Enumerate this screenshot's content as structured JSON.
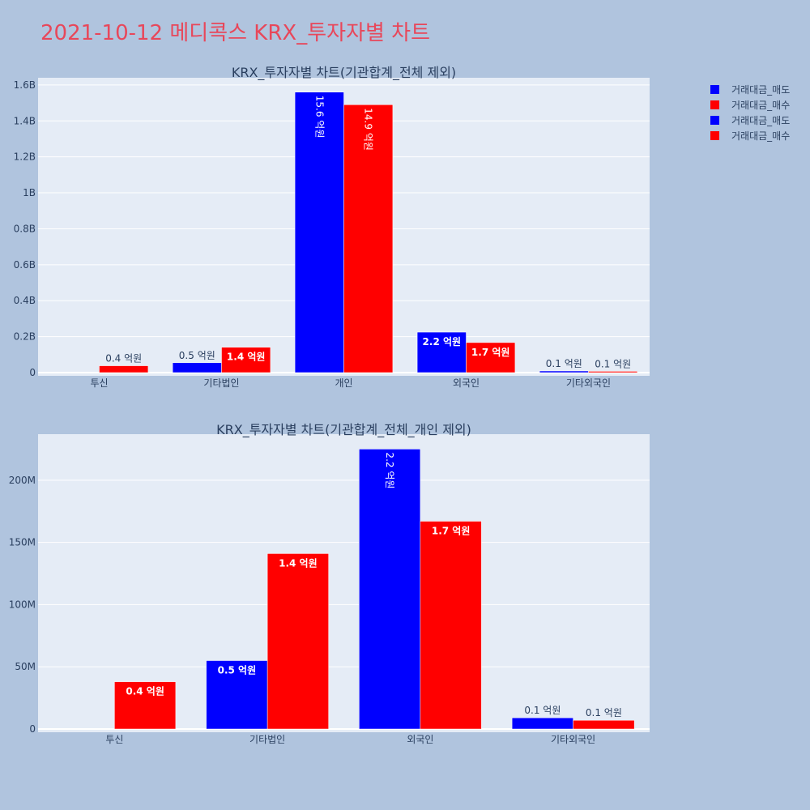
{
  "title": "2021-10-12 메디콕스 KRX_투자자별 차트",
  "legend": [
    {
      "label": "거래대금_매도",
      "color": "#0000ff"
    },
    {
      "label": "거래대금_매수",
      "color": "#ff0000"
    },
    {
      "label": "거래대금_매도",
      "color": "#0000ff"
    },
    {
      "label": "거래대금_매수",
      "color": "#ff0000"
    }
  ],
  "colors": {
    "background": "#b0c4de",
    "plot_bg": "#e5ecf6",
    "sell": "#0000ff",
    "buy": "#ff0000",
    "title": "#e8475a"
  },
  "chart_data": [
    {
      "type": "bar",
      "title": "KRX_투자자별 차트(기관합계_전체 제외)",
      "categories": [
        "투신",
        "기타법인",
        "개인",
        "외국인",
        "기타외국인"
      ],
      "series": [
        {
          "name": "거래대금_매도",
          "values": [
            0,
            55000000,
            1560000000,
            225000000,
            9000000
          ],
          "labels": [
            "",
            "0.5 억원",
            "15.6 억원",
            "2.2 억원",
            "0.1 억원"
          ]
        },
        {
          "name": "거래대금_매수",
          "values": [
            38000000,
            141000000,
            1490000000,
            167000000,
            7000000
          ],
          "labels": [
            "0.4 억원",
            "1.4 억원",
            "14.9 억원",
            "1.7 억원",
            "0.1 억원"
          ]
        }
      ],
      "yticks": [
        0,
        200000000,
        400000000,
        600000000,
        800000000,
        1000000000,
        1200000000,
        1400000000,
        1600000000
      ],
      "ytick_labels": [
        "0",
        "0.2B",
        "0.4B",
        "0.6B",
        "0.8B",
        "1B",
        "1.2B",
        "1.4B",
        "1.6B"
      ],
      "ylim": [
        0,
        1640000000
      ]
    },
    {
      "type": "bar",
      "title": "KRX_투자자별 차트(기관합계_전체_개인 제외)",
      "categories": [
        "투신",
        "기타법인",
        "외국인",
        "기타외국인"
      ],
      "series": [
        {
          "name": "거래대금_매도",
          "values": [
            0,
            55000000,
            225000000,
            9000000
          ],
          "labels": [
            "",
            "0.5 억원",
            "2.2 억원",
            "0.1 억원"
          ]
        },
        {
          "name": "거래대금_매수",
          "values": [
            38000000,
            141000000,
            167000000,
            7000000
          ],
          "labels": [
            "0.4 억원",
            "1.4 억원",
            "1.7 억원",
            "0.1 억원"
          ]
        }
      ],
      "yticks": [
        0,
        50000000,
        100000000,
        150000000,
        200000000
      ],
      "ytick_labels": [
        "0",
        "50M",
        "100M",
        "150M",
        "200M"
      ],
      "ylim": [
        0,
        237000000
      ]
    }
  ]
}
